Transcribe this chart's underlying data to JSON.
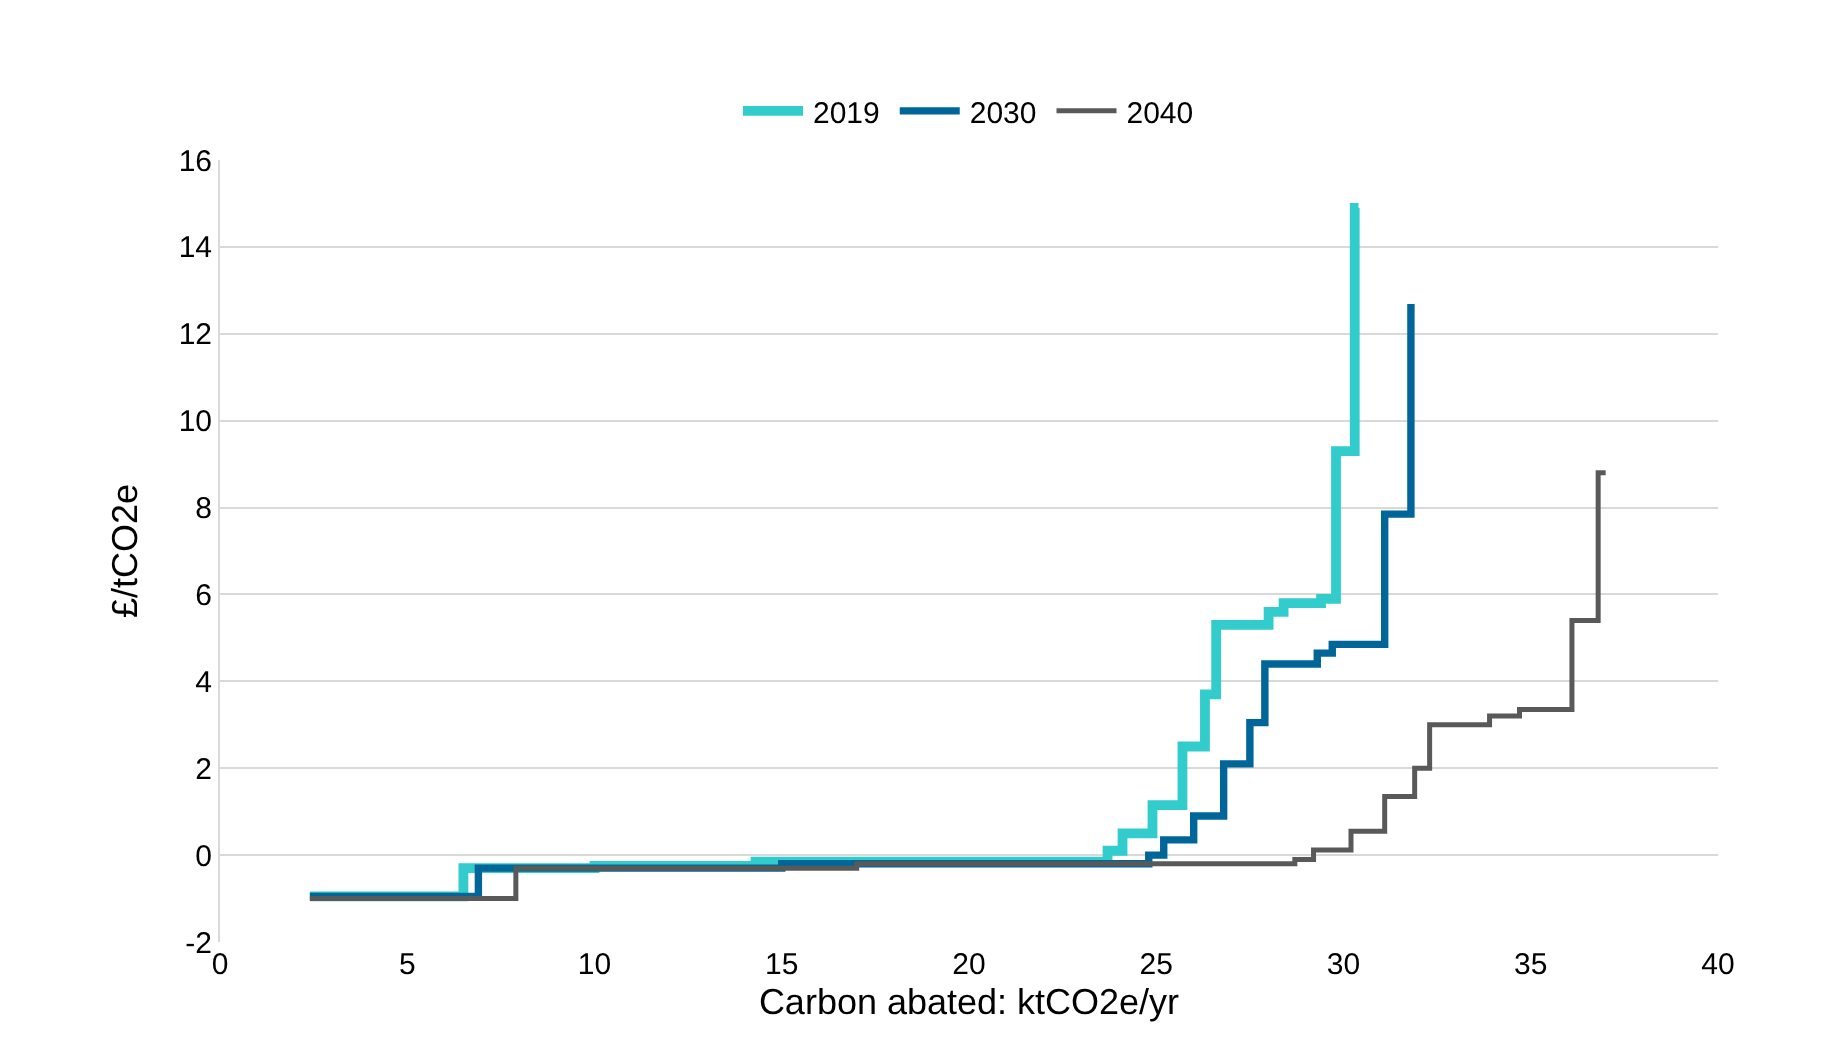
{
  "chart_data": {
    "type": "step",
    "xlabel": "Carbon abated: ktCO2e/yr",
    "ylabel": "£/tCO2e",
    "xlim": [
      0,
      40
    ],
    "xticks": [
      0,
      5,
      10,
      15,
      20,
      25,
      30,
      35,
      40
    ],
    "ylim": [
      -2,
      16
    ],
    "yticks": [
      -2,
      0,
      2,
      4,
      6,
      8,
      10,
      12,
      14,
      16
    ],
    "grid": "y",
    "legend": "top",
    "line_style": "solid",
    "marker": "none",
    "series": [
      {
        "name": "2019",
        "color": "#33cccc",
        "x": [
          2.4,
          6.5,
          10,
          14.3,
          23.7,
          24.1,
          24.9,
          25.7,
          26.3,
          26.6,
          28.0,
          28.4,
          29.4,
          29.8,
          30.3,
          30.4
        ],
        "values": [
          -0.95,
          -0.3,
          -0.25,
          -0.15,
          0.1,
          0.5,
          1.15,
          2.5,
          3.7,
          5.3,
          5.6,
          5.8,
          5.9,
          9.3,
          14.9,
          14.9
        ]
      },
      {
        "name": "2030",
        "color": "#006699",
        "x": [
          2.4,
          6.9,
          15,
          24.8,
          25.2,
          26.0,
          26.8,
          27.5,
          27.9,
          29.3,
          29.7,
          31.1,
          31.8,
          31.9
        ],
        "values": [
          -0.95,
          -0.3,
          -0.2,
          0.0,
          0.35,
          0.9,
          2.1,
          3.05,
          4.4,
          4.65,
          4.85,
          7.85,
          12.6,
          12.6
        ]
      },
      {
        "name": "2040",
        "color": "#595959",
        "x": [
          2.4,
          7.9,
          17,
          28.7,
          29.2,
          30.2,
          31.1,
          31.9,
          32.3,
          33.9,
          34.7,
          36.1,
          36.8,
          37.0
        ],
        "values": [
          -1.0,
          -0.3,
          -0.2,
          -0.1,
          0.12,
          0.55,
          1.35,
          2.0,
          3.0,
          3.2,
          3.35,
          5.4,
          8.8,
          8.8
        ]
      }
    ]
  }
}
